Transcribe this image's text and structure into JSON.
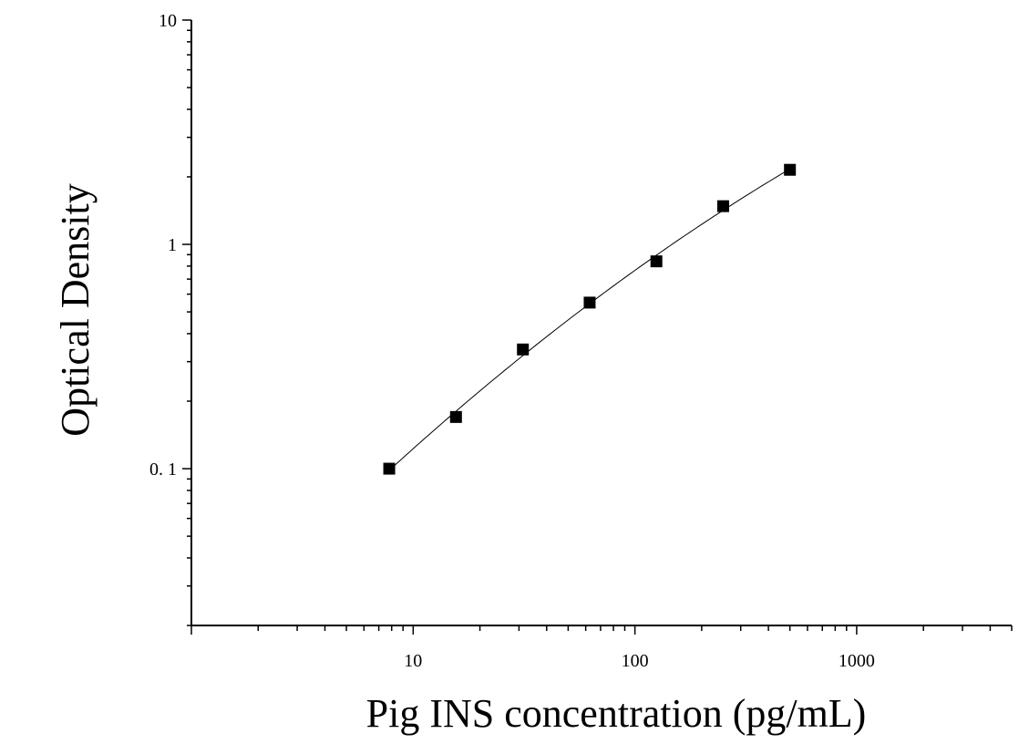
{
  "chart_data": {
    "type": "scatter",
    "title": "",
    "xlabel": "Pig INS concentration (pg/mL)",
    "ylabel": "Optical Density",
    "xscale": "log",
    "yscale": "log",
    "xlim": [
      1,
      5000
    ],
    "ylim": [
      0.02,
      10
    ],
    "x_ticks": [
      10,
      100,
      1000
    ],
    "x_tick_labels": [
      "10",
      "100",
      "1000"
    ],
    "y_ticks": [
      0.1,
      1,
      10
    ],
    "y_tick_labels": [
      "0. 1",
      "1",
      "10"
    ],
    "grid": false,
    "legend": "none",
    "marker_color": "#000000",
    "curve_color": "#000000",
    "series": [
      {
        "marker": "square",
        "points": [
          {
            "x": 7.8,
            "y": 0.1
          },
          {
            "x": 15.6,
            "y": 0.17
          },
          {
            "x": 31.25,
            "y": 0.34
          },
          {
            "x": 62.5,
            "y": 0.55
          },
          {
            "x": 125,
            "y": 0.84
          },
          {
            "x": 250,
            "y": 1.48
          },
          {
            "x": 500,
            "y": 2.15
          }
        ]
      }
    ],
    "fit_curve": true
  }
}
